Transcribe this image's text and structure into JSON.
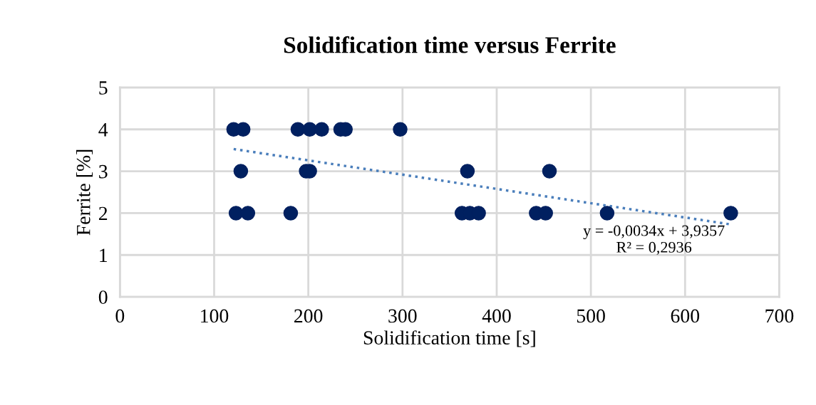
{
  "chart_data": {
    "type": "scatter",
    "title": "Solidification time versus Ferrite",
    "xlabel": "Solidification time [s]",
    "ylabel": "Ferrite [%]",
    "xlim": [
      0,
      700
    ],
    "ylim": [
      0,
      5
    ],
    "xticks": [
      0,
      100,
      200,
      300,
      400,
      500,
      600,
      700
    ],
    "yticks": [
      0,
      1,
      2,
      3,
      4,
      5
    ],
    "grid": true,
    "marker": "circle",
    "series": [
      {
        "color": "#002060",
        "x": [
          120.7,
          130.8,
          188.9,
          201.5,
          214.2,
          234.3,
          239.4,
          297.5,
          128.3,
          197.7,
          201.5,
          368.9,
          456,
          123.2,
          135.8,
          181.3,
          363.1,
          371.5,
          380.8,
          441.9,
          452,
          517.2,
          648.5
        ],
        "values": [
          4,
          4,
          4,
          4,
          4,
          4,
          4,
          4,
          3,
          3,
          3,
          3,
          3,
          2,
          2,
          2,
          2,
          2,
          2,
          2,
          2,
          2,
          2
        ]
      },
      {
        "type": "line",
        "color": "#4a7ebb",
        "line_style": "dotted",
        "marker": "none",
        "x": [
          120.7,
          648.5
        ],
        "values": [
          3.53,
          1.73
        ]
      }
    ],
    "annotations": [
      "y = -0,0034x + 3,9357\nR² = 0,2936"
    ]
  }
}
